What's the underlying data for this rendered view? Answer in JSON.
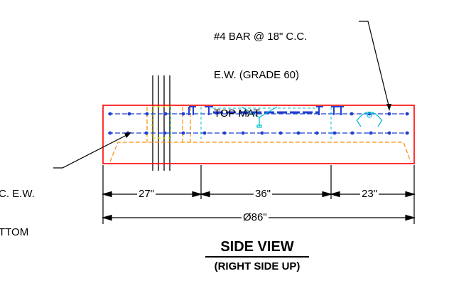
{
  "top_note": {
    "line1": "#4 BAR @ 18\" C.C.",
    "line2": "E.W. (GRADE 60)",
    "line3": "TOP MAT"
  },
  "bottom_note": {
    "line1": "C. E.W.",
    "line2": "TTOM"
  },
  "dimensions": {
    "left": "27\"",
    "middle": "36\"",
    "right": "23\"",
    "overall": "Ø86\""
  },
  "view_title": "SIDE VIEW",
  "view_subtitle": "(RIGHT SIDE UP)",
  "colors": {
    "outline": "#ff0000",
    "rebar": "#1f3fd0",
    "hidden": "#ff8c00",
    "cyan": "#00bcd4",
    "yellow": "#e6e600",
    "line": "#000000"
  }
}
